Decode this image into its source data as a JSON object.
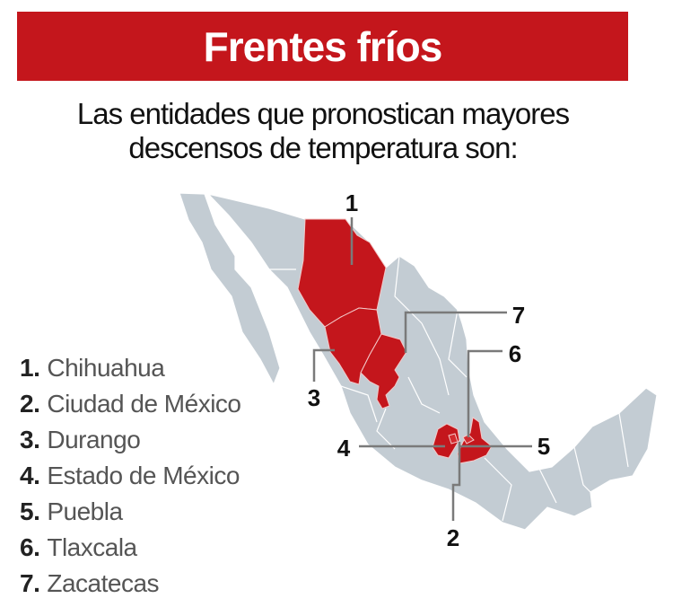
{
  "header": {
    "title": "Frentes fríos"
  },
  "subtitle": {
    "line1": "Las entidades que pronostican mayores",
    "line2": "descensos de temperatura son:"
  },
  "legend": [
    {
      "number": "1.",
      "name": "Chihuahua"
    },
    {
      "number": "2.",
      "name": "Ciudad de México"
    },
    {
      "number": "3.",
      "name": "Durango"
    },
    {
      "number": "4.",
      "name": "Estado de México"
    },
    {
      "number": "5.",
      "name": "Puebla"
    },
    {
      "number": "6.",
      "name": "Tlaxcala"
    },
    {
      "number": "7.",
      "name": "Zacatecas"
    }
  ],
  "map": {
    "labels": {
      "chihuahua": "1",
      "cdmx": "2",
      "durango": "3",
      "edomex": "4",
      "puebla": "5",
      "tlaxcala": "6",
      "zacatecas": "7"
    },
    "colors": {
      "highlight": "#c4161c",
      "base": "#c3ccd3",
      "banner": "#c4161c",
      "leader": "#7a7a7a"
    }
  }
}
